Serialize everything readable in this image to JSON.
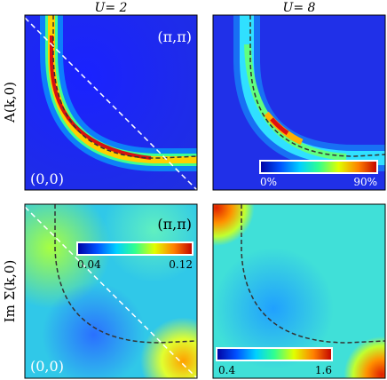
{
  "figure": {
    "col_labels": [
      "U= 2",
      "U= 8"
    ],
    "row_labels": [
      "A(k,0)",
      "Im Σ(k,0)"
    ]
  },
  "chart_data": [
    {
      "type": "heatmap",
      "panel": "top-left",
      "quantity": "A(k,0)",
      "U": 2,
      "corner_labels": {
        "bottom_left": "(0,0)",
        "top_right": "(π,π)"
      },
      "axes": {
        "x_range": [
          0,
          3.1416
        ],
        "y_range": [
          0,
          3.1416
        ]
      },
      "colorbar": null,
      "colormap": [
        "#0000a0",
        "#0050ff",
        "#00d0ff",
        "#30ff90",
        "#e0ff00",
        "#ff8000",
        "#c00000"
      ],
      "features": {
        "fermi_surface_peak": true,
        "nodal_line_dashed": true,
        "noninteracting_fs_dashed": true
      }
    },
    {
      "type": "heatmap",
      "panel": "top-right",
      "quantity": "A(k,0)",
      "U": 8,
      "corner_labels": {},
      "colorbar": {
        "min_label": "0%",
        "max_label": "90%",
        "min": 0,
        "max": 90
      },
      "colormap": [
        "#0000a0",
        "#0050ff",
        "#00d0ff",
        "#30ff90",
        "#e0ff00",
        "#ff8000",
        "#c00000"
      ],
      "features": {
        "fermi_surface_peak": true,
        "noninteracting_fs_dashed": true
      }
    },
    {
      "type": "heatmap",
      "panel": "bottom-left",
      "quantity": "Im Σ(k,0)",
      "U": 2,
      "corner_labels": {
        "bottom_left": "(0,0)",
        "top_right": "(π,π)"
      },
      "colorbar": {
        "min_label": "0.04",
        "max_label": "0.12",
        "min": 0.04,
        "max": 0.12
      },
      "colormap": [
        "#0000a0",
        "#0050ff",
        "#00d0ff",
        "#30ff90",
        "#e0ff00",
        "#ff8000",
        "#c00000"
      ],
      "features": {
        "nodal_line_dashed": true,
        "noninteracting_fs_dashed": true
      }
    },
    {
      "type": "heatmap",
      "panel": "bottom-right",
      "quantity": "Im Σ(k,0)",
      "U": 8,
      "corner_labels": {},
      "colorbar": {
        "min_label": "0.4",
        "max_label": "1.6",
        "min": 0.4,
        "max": 1.6
      },
      "colormap": [
        "#0000a0",
        "#0050ff",
        "#00d0ff",
        "#30ff90",
        "#e0ff00",
        "#ff8000",
        "#c00000"
      ],
      "features": {
        "noninteracting_fs_dashed": true
      }
    }
  ]
}
